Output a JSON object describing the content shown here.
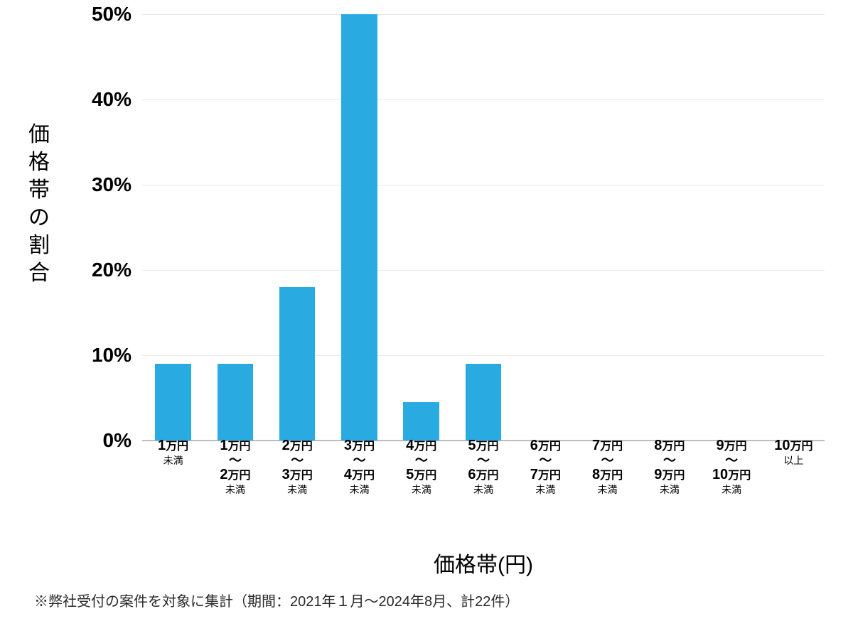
{
  "chart": {
    "type": "bar",
    "yaxis_title": "価格帯の割合",
    "xaxis_title": "価格帯(円)",
    "ylim": [
      0,
      50
    ],
    "ytick_step": 10,
    "ytick_suffix": "%",
    "yticks": [
      "0%",
      "10%",
      "20%",
      "30%",
      "40%",
      "50%"
    ],
    "grid_color": "#e8e8e8",
    "baseline_color": "#bdbdbd",
    "background_color": "#ffffff",
    "bar_color": "#29abe2",
    "bar_width_ratio": 0.58,
    "ytick_fontsize": 28,
    "axis_title_fontsize": 30,
    "categories": [
      {
        "lines": [
          {
            "t": "1",
            "cls": "big"
          },
          {
            "t": "万円",
            "cls": "med"
          }
        ],
        "sub": "未満",
        "value": 9
      },
      {
        "lines": [
          {
            "t": "1",
            "cls": "big"
          },
          {
            "t": "万円",
            "cls": "med"
          },
          {
            "t": "〜",
            "cls": "tilde"
          },
          {
            "t": "2",
            "cls": "big"
          },
          {
            "t": "万円",
            "cls": "med"
          }
        ],
        "sub": "未満",
        "value": 9
      },
      {
        "lines": [
          {
            "t": "2",
            "cls": "big"
          },
          {
            "t": "万円",
            "cls": "med"
          },
          {
            "t": "〜",
            "cls": "tilde"
          },
          {
            "t": "3",
            "cls": "big"
          },
          {
            "t": "万円",
            "cls": "med"
          }
        ],
        "sub": "未満",
        "value": 18
      },
      {
        "lines": [
          {
            "t": "3",
            "cls": "big"
          },
          {
            "t": "万円",
            "cls": "med"
          },
          {
            "t": "〜",
            "cls": "tilde"
          },
          {
            "t": "4",
            "cls": "big"
          },
          {
            "t": "万円",
            "cls": "med"
          }
        ],
        "sub": "未満",
        "value": 50
      },
      {
        "lines": [
          {
            "t": "4",
            "cls": "big"
          },
          {
            "t": "万円",
            "cls": "med"
          },
          {
            "t": "〜",
            "cls": "tilde"
          },
          {
            "t": "5",
            "cls": "big"
          },
          {
            "t": "万円",
            "cls": "med"
          }
        ],
        "sub": "未満",
        "value": 4.5
      },
      {
        "lines": [
          {
            "t": "5",
            "cls": "big"
          },
          {
            "t": "万円",
            "cls": "med"
          },
          {
            "t": "〜",
            "cls": "tilde"
          },
          {
            "t": "6",
            "cls": "big"
          },
          {
            "t": "万円",
            "cls": "med"
          }
        ],
        "sub": "未満",
        "value": 9
      },
      {
        "lines": [
          {
            "t": "6",
            "cls": "big"
          },
          {
            "t": "万円",
            "cls": "med"
          },
          {
            "t": "〜",
            "cls": "tilde"
          },
          {
            "t": "7",
            "cls": "big"
          },
          {
            "t": "万円",
            "cls": "med"
          }
        ],
        "sub": "未満",
        "value": 0
      },
      {
        "lines": [
          {
            "t": "7",
            "cls": "big"
          },
          {
            "t": "万円",
            "cls": "med"
          },
          {
            "t": "〜",
            "cls": "tilde"
          },
          {
            "t": "8",
            "cls": "big"
          },
          {
            "t": "万円",
            "cls": "med"
          }
        ],
        "sub": "未満",
        "value": 0
      },
      {
        "lines": [
          {
            "t": "8",
            "cls": "big"
          },
          {
            "t": "万円",
            "cls": "med"
          },
          {
            "t": "〜",
            "cls": "tilde"
          },
          {
            "t": "9",
            "cls": "big"
          },
          {
            "t": "万円",
            "cls": "med"
          }
        ],
        "sub": "未満",
        "value": 0
      },
      {
        "lines": [
          {
            "t": "9",
            "cls": "big"
          },
          {
            "t": "万円",
            "cls": "med"
          },
          {
            "t": "〜",
            "cls": "tilde"
          },
          {
            "t": "10",
            "cls": "big"
          },
          {
            "t": "万円",
            "cls": "med"
          }
        ],
        "sub": "未満",
        "value": 0
      },
      {
        "lines": [
          {
            "t": "10",
            "cls": "big"
          },
          {
            "t": "万円",
            "cls": "med"
          }
        ],
        "sub": "以上",
        "value": 0
      }
    ]
  },
  "footnote": "※弊社受付の案件を対象に集計（期間：2021年１月〜2024年8月、計22件）"
}
